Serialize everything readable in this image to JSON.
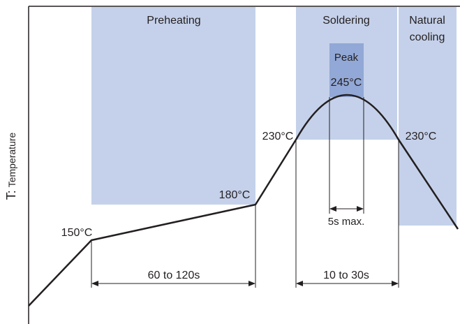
{
  "diagram": {
    "y_axis_label_prefix": "T:",
    "y_axis_label_text": "Temperature",
    "zones": {
      "preheating": "Preheating",
      "soldering": "Soldering",
      "natural_cooling_line1": "Natural",
      "natural_cooling_line2": "cooling",
      "peak": "Peak"
    },
    "temperatures": {
      "t150": "150°C",
      "t180": "180°C",
      "t230_left": "230°C",
      "t245": "245°C",
      "t230_right": "230°C"
    },
    "durations": {
      "preheat": "60 to 120s",
      "soldering": "10 to 30s",
      "peak": "5s max."
    },
    "colors": {
      "zone_fill": "#c5d1ea",
      "peak_fill": "#92a8d6",
      "curve": "#231f20",
      "frame": "#231f20"
    }
  }
}
